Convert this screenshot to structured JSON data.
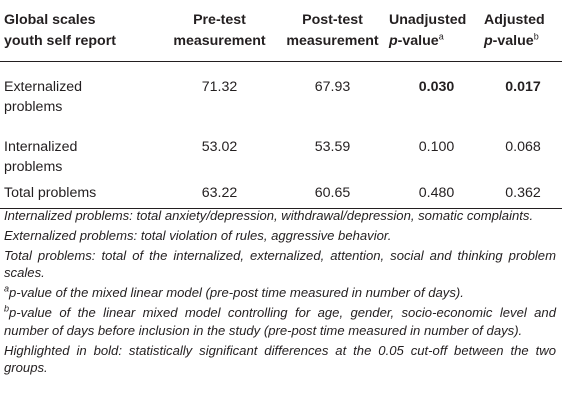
{
  "table": {
    "headers": [
      {
        "line1": "Global scales",
        "line2": "youth self report"
      },
      {
        "line1": "Pre-test",
        "line2": "measurement"
      },
      {
        "line1": "Post-test",
        "line2": "measurement"
      },
      {
        "line1": "Unadjusted",
        "line2_italic": "p",
        "line2_rest": "-value",
        "sup": "a"
      },
      {
        "line1": "Adjusted",
        "line2_italic": "p",
        "line2_rest": "-value",
        "sup": "b"
      }
    ],
    "rows": [
      {
        "label_l1": "Externalized",
        "label_l2": "problems",
        "pre": "71.32",
        "post": "67.93",
        "unadj": "0.030",
        "adj": "0.017",
        "unadj_bold": true,
        "adj_bold": true
      },
      {
        "label_l1": "Internalized",
        "label_l2": "problems",
        "pre": "53.02",
        "post": "53.59",
        "unadj": "0.100",
        "adj": "0.068",
        "unadj_bold": false,
        "adj_bold": false
      },
      {
        "label_l1": "Total problems",
        "label_l2": "",
        "pre": "63.22",
        "post": "60.65",
        "unadj": "0.480",
        "adj": "0.362",
        "unadj_bold": false,
        "adj_bold": false
      }
    ]
  },
  "notes": {
    "internalized": "Internalized problems: total anxiety/depression, withdrawal/depression, somatic complaints.",
    "externalized": "Externalized problems: total violation of rules, aggressive behavior.",
    "total": "Total problems: total of the internalized, externalized, attention, social and thinking problem scales.",
    "a_sup": "a",
    "a_text": "p-value of the mixed linear model (pre-post time measured in number of days).",
    "b_sup": "b",
    "b_text": "p-value of the linear mixed model controlling for age, gender, socio-economic level and number of days before inclusion in the study (pre-post time measured in number of days).",
    "bold": "Highlighted in bold: statistically significant differences at the 0.05 cut-off between the two groups."
  }
}
